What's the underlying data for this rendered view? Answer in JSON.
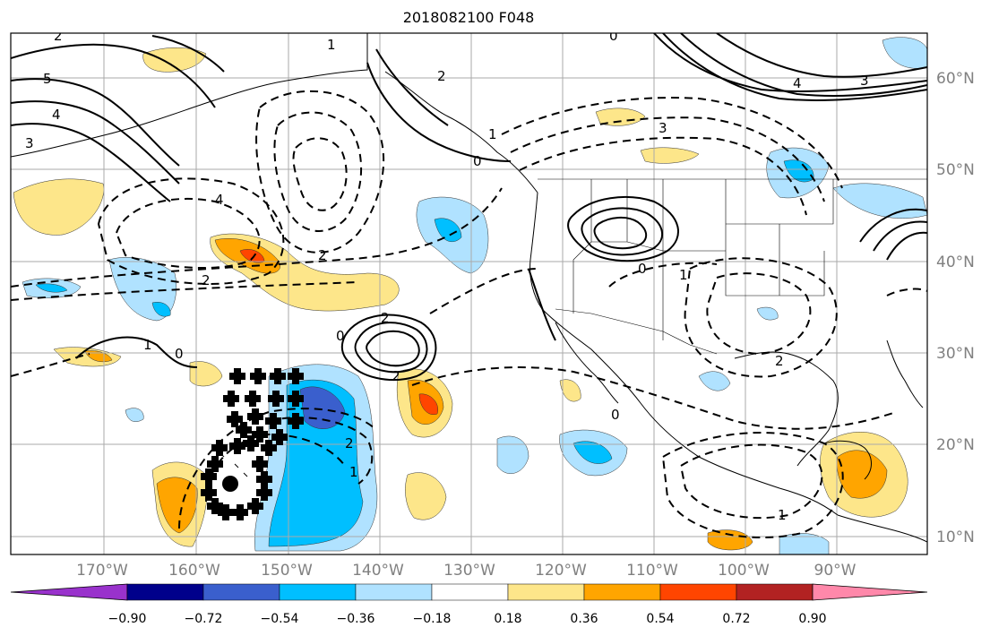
{
  "title": "2018082100 F048",
  "lon_labels": [
    "170°W",
    "160°W",
    "150°W",
    "140°W",
    "130°W",
    "120°W",
    "110°W",
    "100°W",
    "90°W"
  ],
  "lat_labels": [
    "60°N",
    "50°N",
    "40°N",
    "30°N",
    "20°N",
    "10°N"
  ],
  "colorbar": {
    "ticks": [
      "−0.90",
      "−0.72",
      "−0.54",
      "−0.36",
      "−0.18",
      "0.18",
      "0.36",
      "0.54",
      "0.72",
      "0.90"
    ],
    "colors": [
      "#9932cc",
      "#00008b",
      "#3a5fcd",
      "#00bfff",
      "#b0e2ff",
      "#ffffff",
      "#fde68a",
      "#ffa500",
      "#ff4500",
      "#b22222",
      "#ff88aa"
    ]
  },
  "contour_labels": [
    "2",
    "1",
    "0",
    "5",
    "4",
    "3",
    "2",
    "1",
    "0",
    "4",
    "2",
    "2",
    "2",
    "1",
    "0",
    "0",
    "1",
    "2",
    "2",
    "3",
    "1",
    "0",
    "0",
    "1",
    "2",
    "3",
    "4"
  ],
  "colors": {
    "land_line": "#000000",
    "grid": "#aaaaaa"
  }
}
